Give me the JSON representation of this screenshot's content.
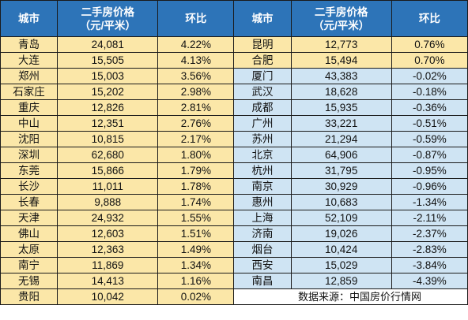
{
  "headers": {
    "city": "城市",
    "price_line1": "二手房价格",
    "price_line2": "（元/平米）",
    "mom": "环比"
  },
  "rows": [
    {
      "left": {
        "city": "青岛",
        "price": "24,081",
        "mom": "4.22%"
      },
      "right": {
        "city": "昆明",
        "price": "12,773",
        "mom": "0.76%"
      }
    },
    {
      "left": {
        "city": "大连",
        "price": "15,505",
        "mom": "4.13%"
      },
      "right": {
        "city": "合肥",
        "price": "15,494",
        "mom": "0.70%"
      }
    },
    {
      "left": {
        "city": "郑州",
        "price": "15,003",
        "mom": "3.56%"
      },
      "right": {
        "city": "厦门",
        "price": "43,383",
        "mom": "-0.02%"
      }
    },
    {
      "left": {
        "city": "石家庄",
        "price": "15,202",
        "mom": "2.98%"
      },
      "right": {
        "city": "武汉",
        "price": "18,628",
        "mom": "-0.18%"
      }
    },
    {
      "left": {
        "city": "重庆",
        "price": "12,826",
        "mom": "2.81%"
      },
      "right": {
        "city": "成都",
        "price": "15,935",
        "mom": "-0.36%"
      }
    },
    {
      "left": {
        "city": "中山",
        "price": "12,351",
        "mom": "2.76%"
      },
      "right": {
        "city": "广州",
        "price": "33,221",
        "mom": "-0.51%"
      }
    },
    {
      "left": {
        "city": "沈阳",
        "price": "10,815",
        "mom": "2.17%"
      },
      "right": {
        "city": "苏州",
        "price": "21,294",
        "mom": "-0.59%"
      }
    },
    {
      "left": {
        "city": "深圳",
        "price": "62,680",
        "mom": "1.80%"
      },
      "right": {
        "city": "北京",
        "price": "64,906",
        "mom": "-0.87%"
      }
    },
    {
      "left": {
        "city": "东莞",
        "price": "15,866",
        "mom": "1.79%"
      },
      "right": {
        "city": "杭州",
        "price": "31,795",
        "mom": "-0.95%"
      }
    },
    {
      "left": {
        "city": "长沙",
        "price": "11,011",
        "mom": "1.78%"
      },
      "right": {
        "city": "南京",
        "price": "30,929",
        "mom": "-0.96%"
      }
    },
    {
      "left": {
        "city": "长春",
        "price": "9,888",
        "mom": "1.74%"
      },
      "right": {
        "city": "惠州",
        "price": "10,683",
        "mom": "-1.34%"
      }
    },
    {
      "left": {
        "city": "天津",
        "price": "24,932",
        "mom": "1.55%"
      },
      "right": {
        "city": "上海",
        "price": "52,109",
        "mom": "-2.11%"
      }
    },
    {
      "left": {
        "city": "佛山",
        "price": "12,603",
        "mom": "1.51%"
      },
      "right": {
        "city": "济南",
        "price": "19,026",
        "mom": "-2.37%"
      }
    },
    {
      "left": {
        "city": "太原",
        "price": "12,363",
        "mom": "1.49%"
      },
      "right": {
        "city": "烟台",
        "price": "10,424",
        "mom": "-2.83%"
      }
    },
    {
      "left": {
        "city": "南宁",
        "price": "11,869",
        "mom": "1.34%"
      },
      "right": {
        "city": "西安",
        "price": "15,029",
        "mom": "-3.84%"
      }
    },
    {
      "left": {
        "city": "无锡",
        "price": "14,413",
        "mom": "1.16%"
      },
      "right": {
        "city": "南昌",
        "price": "12,859",
        "mom": "-4.39%"
      }
    },
    {
      "left": {
        "city": "贵阳",
        "price": "10,042",
        "mom": "0.02%"
      },
      "right": null
    }
  ],
  "source_note": "数据来源：中国房价行情网",
  "colors": {
    "header_bg": "#2d74b8",
    "rising_row_bg": "#fbe7a8",
    "falling_row_bg": "#cfe4f3"
  }
}
